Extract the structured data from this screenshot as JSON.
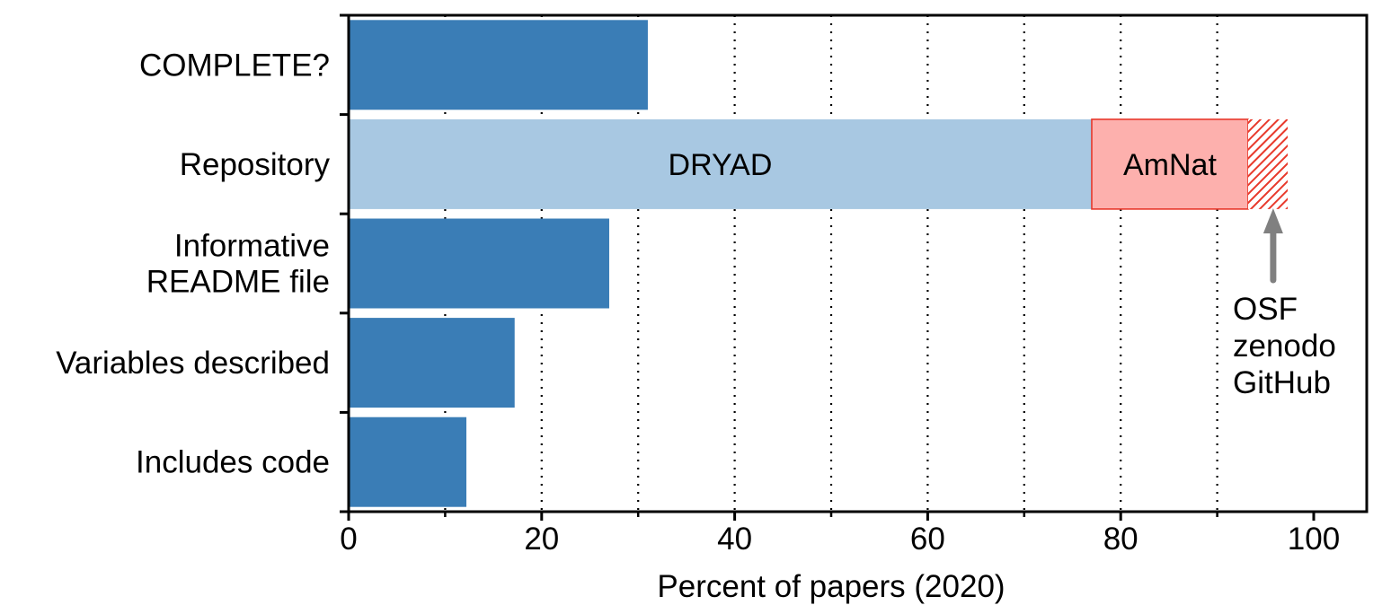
{
  "chart_data": {
    "type": "bar",
    "orientation": "horizontal",
    "categories": [
      "COMPLETE?",
      "Repository",
      "Informative\nREADME file",
      "Variables described",
      "Includes code"
    ],
    "values": [
      31,
      null,
      27,
      17.2,
      12.2
    ],
    "stacked_row": {
      "category": "Repository",
      "segments": [
        {
          "name": "DRYAD",
          "start": 0,
          "end": 77,
          "color": "#a8c8e2",
          "pattern": "solid"
        },
        {
          "name": "AmNat",
          "start": 77,
          "end": 93.2,
          "color": "#fdb0ad",
          "border": "#e8392b",
          "pattern": "solid"
        },
        {
          "name": "",
          "start": 93.2,
          "end": 97.3,
          "color": "#e8392b",
          "pattern": "hatch"
        }
      ]
    },
    "annotation": {
      "lines": [
        "OSF",
        "zenodo",
        "GitHub"
      ],
      "points_to_x": 95.8
    },
    "xlabel": "Percent of papers (2020)",
    "ylabel": "",
    "xlim": [
      0,
      105
    ],
    "x_ticks": [
      0,
      20,
      40,
      60,
      80,
      100
    ],
    "x_minor_ticks": [
      10,
      30,
      50,
      70,
      90
    ],
    "vertical_dotted_grid": [
      10,
      20,
      30,
      40,
      50,
      60,
      70,
      80,
      90
    ],
    "bar_color": "#3a7db6",
    "arrow_color": "#808080",
    "grid": "vertical dotted",
    "legend": "none"
  }
}
